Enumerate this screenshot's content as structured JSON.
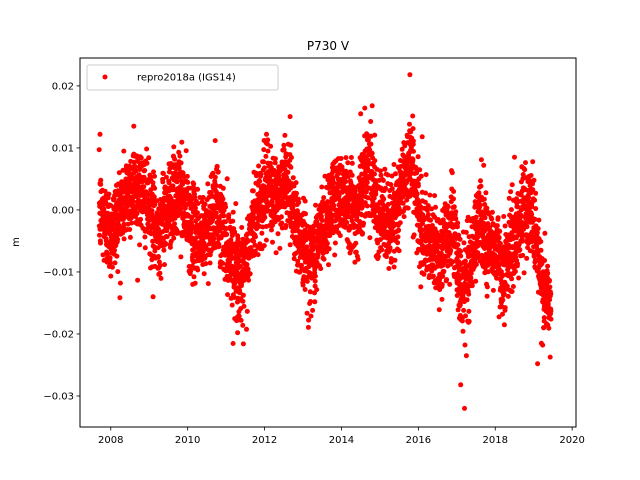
{
  "chart_data": {
    "type": "scatter",
    "title": "P730 V",
    "xlabel": "",
    "ylabel": "m",
    "xlim": [
      2007.2,
      2020.1
    ],
    "ylim": [
      -0.035,
      0.0245
    ],
    "x_ticks": [
      2008,
      2010,
      2012,
      2014,
      2016,
      2018,
      2020
    ],
    "x_tick_labels": [
      "2008",
      "2010",
      "2012",
      "2014",
      "2016",
      "2018",
      "2020"
    ],
    "y_ticks": [
      -0.03,
      -0.02,
      -0.01,
      0.0,
      0.01,
      0.02
    ],
    "y_tick_labels": [
      "−0.03",
      "−0.02",
      "−0.01",
      "0.00",
      "0.01",
      "0.02"
    ],
    "legend_position": "top-left",
    "marker_color": "#ff0000",
    "series": [
      {
        "name": "repro2018a (IGS14)",
        "x_range": [
          2007.7,
          2019.45
        ],
        "trend_knots": [
          [
            2007.7,
            0.0
          ],
          [
            2008.0,
            -0.004
          ],
          [
            2008.3,
            0.001
          ],
          [
            2008.6,
            0.004
          ],
          [
            2008.9,
            0.002
          ],
          [
            2009.2,
            -0.004
          ],
          [
            2009.5,
            0.001
          ],
          [
            2009.8,
            0.003
          ],
          [
            2010.1,
            -0.003
          ],
          [
            2010.4,
            -0.005
          ],
          [
            2010.7,
            0.001
          ],
          [
            2011.0,
            -0.005
          ],
          [
            2011.3,
            -0.01
          ],
          [
            2011.45,
            -0.012
          ],
          [
            2011.7,
            -0.002
          ],
          [
            2012.0,
            0.003
          ],
          [
            2012.3,
            0.002
          ],
          [
            2012.6,
            0.005
          ],
          [
            2012.9,
            -0.004
          ],
          [
            2013.2,
            -0.009
          ],
          [
            2013.5,
            -0.003
          ],
          [
            2013.8,
            0.002
          ],
          [
            2014.1,
            0.003
          ],
          [
            2014.4,
            -0.001
          ],
          [
            2014.7,
            0.008
          ],
          [
            2015.0,
            -0.001
          ],
          [
            2015.3,
            -0.003
          ],
          [
            2015.6,
            0.004
          ],
          [
            2015.8,
            0.009
          ],
          [
            2016.0,
            -0.001
          ],
          [
            2016.3,
            -0.006
          ],
          [
            2016.6,
            -0.007
          ],
          [
            2016.9,
            -0.002
          ],
          [
            2017.1,
            -0.013
          ],
          [
            2017.3,
            -0.01
          ],
          [
            2017.6,
            -0.001
          ],
          [
            2017.8,
            -0.006
          ],
          [
            2018.0,
            -0.006
          ],
          [
            2018.2,
            -0.01
          ],
          [
            2018.5,
            -0.005
          ],
          [
            2018.8,
            0.001
          ],
          [
            2019.0,
            -0.001
          ],
          [
            2019.2,
            -0.012
          ],
          [
            2019.45,
            -0.016
          ]
        ],
        "noise_sd": 0.0035,
        "points_per_year": 360,
        "outliers": [
          [
            2015.78,
            0.0218
          ],
          [
            2017.2,
            -0.032
          ],
          [
            2017.1,
            -0.0282
          ],
          [
            2017.25,
            -0.0235
          ],
          [
            2019.1,
            -0.0248
          ],
          [
            2011.45,
            -0.0216
          ],
          [
            2014.8,
            0.0168
          ],
          [
            2008.6,
            0.0135
          ],
          [
            2012.05,
            0.0122
          ],
          [
            2011.3,
            -0.0198
          ],
          [
            2019.2,
            -0.0215
          ],
          [
            2017.7,
            0.0072
          ],
          [
            2018.5,
            0.0085
          ],
          [
            2007.72,
            0.0122
          ],
          [
            2016.1,
            0.0118
          ],
          [
            2014.5,
            0.0155
          ],
          [
            2013.25,
            -0.0162
          ],
          [
            2009.1,
            -0.014
          ],
          [
            2008.25,
            -0.0118
          ]
        ]
      }
    ]
  }
}
